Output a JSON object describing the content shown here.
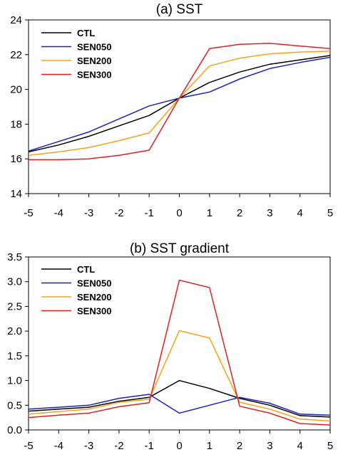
{
  "chart_data": [
    {
      "type": "line",
      "title": "(a) SST",
      "xlabel": "",
      "ylabel": "",
      "x": [
        -5,
        -4,
        -3,
        -2,
        -1,
        0,
        1,
        2,
        3,
        4,
        5
      ],
      "xticks": [
        "-5",
        "-4",
        "-3",
        "-2",
        "-1",
        "0",
        "1",
        "2",
        "3",
        "4",
        "5"
      ],
      "ylim": [
        14,
        24
      ],
      "yticks": [
        "14",
        "16",
        "18",
        "20",
        "22",
        "24"
      ],
      "ytick_values": [
        14,
        16,
        18,
        20,
        22,
        24
      ],
      "grid": false,
      "legend_position": "top-left",
      "series": [
        {
          "name": "CTL",
          "color": "#000000",
          "values": [
            16.4,
            16.8,
            17.3,
            17.9,
            18.5,
            19.5,
            20.4,
            21.0,
            21.45,
            21.7,
            21.95
          ]
        },
        {
          "name": "SEN050",
          "color": "#1f1fbf",
          "values": [
            16.45,
            17.0,
            17.55,
            18.3,
            19.05,
            19.5,
            19.85,
            20.6,
            21.2,
            21.55,
            21.85
          ]
        },
        {
          "name": "SEN200",
          "color": "#f5a31a",
          "values": [
            16.2,
            16.4,
            16.65,
            17.05,
            17.5,
            19.5,
            21.35,
            21.8,
            22.05,
            22.15,
            22.2
          ]
        },
        {
          "name": "SEN300",
          "color": "#e02020",
          "values": [
            15.95,
            15.95,
            16.0,
            16.2,
            16.5,
            19.5,
            22.35,
            22.6,
            22.65,
            22.5,
            22.35
          ]
        }
      ]
    },
    {
      "type": "line",
      "title": "(b) SST gradient",
      "xlabel": "",
      "ylabel": "",
      "x": [
        -5,
        -4,
        -3,
        -2,
        -1,
        0,
        1,
        2,
        3,
        4,
        5
      ],
      "xticks": [
        "-5",
        "-4",
        "-3",
        "-2",
        "-1",
        "0",
        "1",
        "2",
        "3",
        "4",
        "5"
      ],
      "ylim": [
        0.0,
        3.5
      ],
      "yticks": [
        "0.0",
        "0.5",
        "1.0",
        "1.5",
        "2.0",
        "2.5",
        "3.0",
        "3.5"
      ],
      "ytick_values": [
        0.0,
        0.5,
        1.0,
        1.5,
        2.0,
        2.5,
        3.0,
        3.5
      ],
      "grid": false,
      "legend_position": "top-left",
      "series": [
        {
          "name": "CTL",
          "color": "#000000",
          "values": [
            0.38,
            0.42,
            0.46,
            0.58,
            0.66,
            1.0,
            0.84,
            0.64,
            0.5,
            0.29,
            0.26
          ]
        },
        {
          "name": "SEN050",
          "color": "#1f1fbf",
          "values": [
            0.42,
            0.46,
            0.5,
            0.64,
            0.72,
            0.34,
            0.5,
            0.66,
            0.54,
            0.32,
            0.3
          ]
        },
        {
          "name": "SEN200",
          "color": "#f5a31a",
          "values": [
            0.32,
            0.37,
            0.42,
            0.56,
            0.62,
            2.01,
            1.86,
            0.56,
            0.42,
            0.22,
            0.18
          ]
        },
        {
          "name": "SEN300",
          "color": "#e02020",
          "values": [
            0.25,
            0.3,
            0.34,
            0.47,
            0.55,
            3.03,
            2.88,
            0.48,
            0.34,
            0.13,
            0.1
          ]
        }
      ]
    }
  ]
}
